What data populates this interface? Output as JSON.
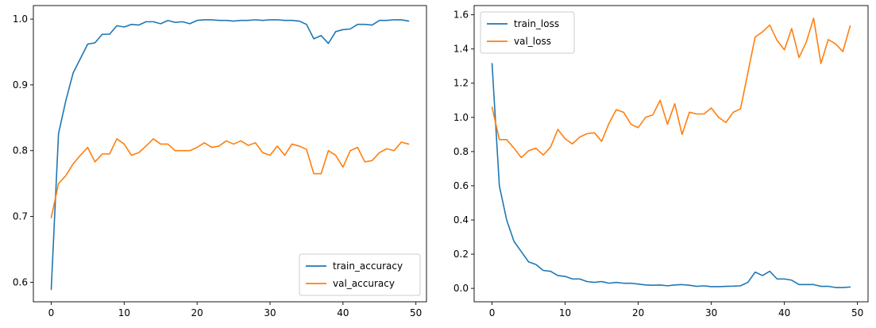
{
  "chart_data": [
    {
      "type": "line",
      "title": "",
      "xlabel": "",
      "ylabel": "",
      "xlim": [
        -2.45,
        51.45
      ],
      "ylim": [
        0.5703,
        1.0206
      ],
      "x_ticks": [
        0,
        10,
        20,
        30,
        40,
        50
      ],
      "y_ticks": [
        0.6,
        0.7,
        0.8,
        0.9,
        1.0
      ],
      "y_tick_labels": [
        "0.6",
        "0.7",
        "0.8",
        "0.9",
        "1.0"
      ],
      "legend_position": "lower-right",
      "grid": false,
      "x": [
        0,
        1,
        2,
        3,
        4,
        5,
        6,
        7,
        8,
        9,
        10,
        11,
        12,
        13,
        14,
        15,
        16,
        17,
        18,
        19,
        20,
        21,
        22,
        23,
        24,
        25,
        26,
        27,
        28,
        29,
        30,
        31,
        32,
        33,
        34,
        35,
        36,
        37,
        38,
        39,
        40,
        41,
        42,
        43,
        44,
        45,
        46,
        47,
        48,
        49
      ],
      "series": [
        {
          "name": "train_accuracy",
          "color": "#1f77b4",
          "values": [
            0.589,
            0.826,
            0.876,
            0.918,
            0.94,
            0.962,
            0.964,
            0.977,
            0.977,
            0.99,
            0.988,
            0.992,
            0.991,
            0.996,
            0.996,
            0.993,
            0.998,
            0.995,
            0.996,
            0.993,
            0.998,
            0.999,
            0.999,
            0.998,
            0.998,
            0.997,
            0.998,
            0.998,
            0.999,
            0.998,
            0.999,
            0.999,
            0.998,
            0.998,
            0.997,
            0.992,
            0.97,
            0.975,
            0.963,
            0.981,
            0.984,
            0.985,
            0.992,
            0.992,
            0.991,
            0.998,
            0.998,
            0.999,
            0.999,
            0.997
          ]
        },
        {
          "name": "val_accuracy",
          "color": "#ff7f0e",
          "values": [
            0.698,
            0.75,
            0.762,
            0.78,
            0.793,
            0.805,
            0.783,
            0.795,
            0.795,
            0.818,
            0.81,
            0.793,
            0.797,
            0.807,
            0.818,
            0.81,
            0.81,
            0.8,
            0.8,
            0.8,
            0.805,
            0.812,
            0.805,
            0.807,
            0.815,
            0.81,
            0.815,
            0.808,
            0.812,
            0.797,
            0.793,
            0.807,
            0.793,
            0.81,
            0.807,
            0.802,
            0.765,
            0.765,
            0.8,
            0.793,
            0.775,
            0.8,
            0.805,
            0.783,
            0.785,
            0.797,
            0.803,
            0.8,
            0.813,
            0.81
          ]
        }
      ]
    },
    {
      "type": "line",
      "title": "",
      "xlabel": "",
      "ylabel": "",
      "xlim": [
        -2.45,
        51.45
      ],
      "ylim": [
        -0.0785,
        1.654
      ],
      "x_ticks": [
        0,
        10,
        20,
        30,
        40,
        50
      ],
      "y_ticks": [
        0.0,
        0.2,
        0.4,
        0.6,
        0.8,
        1.0,
        1.2,
        1.4,
        1.6
      ],
      "y_tick_labels": [
        "0.0",
        "0.2",
        "0.4",
        "0.6",
        "0.8",
        "1.0",
        "1.2",
        "1.4",
        "1.6"
      ],
      "legend_position": "upper-left",
      "grid": false,
      "x": [
        0,
        1,
        2,
        3,
        4,
        5,
        6,
        7,
        8,
        9,
        10,
        11,
        12,
        13,
        14,
        15,
        16,
        17,
        18,
        19,
        20,
        21,
        22,
        23,
        24,
        25,
        26,
        27,
        28,
        29,
        30,
        31,
        32,
        33,
        34,
        35,
        36,
        37,
        38,
        39,
        40,
        41,
        42,
        43,
        44,
        45,
        46,
        47,
        48,
        49
      ],
      "series": [
        {
          "name": "train_loss",
          "color": "#1f77b4",
          "values": [
            1.315,
            0.6,
            0.4,
            0.275,
            0.215,
            0.155,
            0.14,
            0.105,
            0.1,
            0.075,
            0.07,
            0.055,
            0.055,
            0.04,
            0.035,
            0.04,
            0.03,
            0.035,
            0.03,
            0.03,
            0.025,
            0.02,
            0.018,
            0.02,
            0.015,
            0.02,
            0.022,
            0.018,
            0.012,
            0.015,
            0.01,
            0.01,
            0.012,
            0.013,
            0.015,
            0.035,
            0.095,
            0.075,
            0.1,
            0.055,
            0.055,
            0.048,
            0.022,
            0.022,
            0.022,
            0.012,
            0.012,
            0.005,
            0.005,
            0.008
          ]
        },
        {
          "name": "val_loss",
          "color": "#ff7f0e",
          "values": [
            1.06,
            0.87,
            0.87,
            0.82,
            0.765,
            0.805,
            0.82,
            0.78,
            0.825,
            0.93,
            0.875,
            0.845,
            0.885,
            0.905,
            0.91,
            0.86,
            0.965,
            1.045,
            1.03,
            0.96,
            0.94,
            1.0,
            1.015,
            1.1,
            0.96,
            1.08,
            0.9,
            1.03,
            1.02,
            1.02,
            1.055,
            1.0,
            0.97,
            1.03,
            1.05,
            1.26,
            1.47,
            1.5,
            1.54,
            1.45,
            1.395,
            1.52,
            1.35,
            1.44,
            1.58,
            1.315,
            1.455,
            1.43,
            1.385,
            1.535
          ]
        }
      ]
    }
  ]
}
